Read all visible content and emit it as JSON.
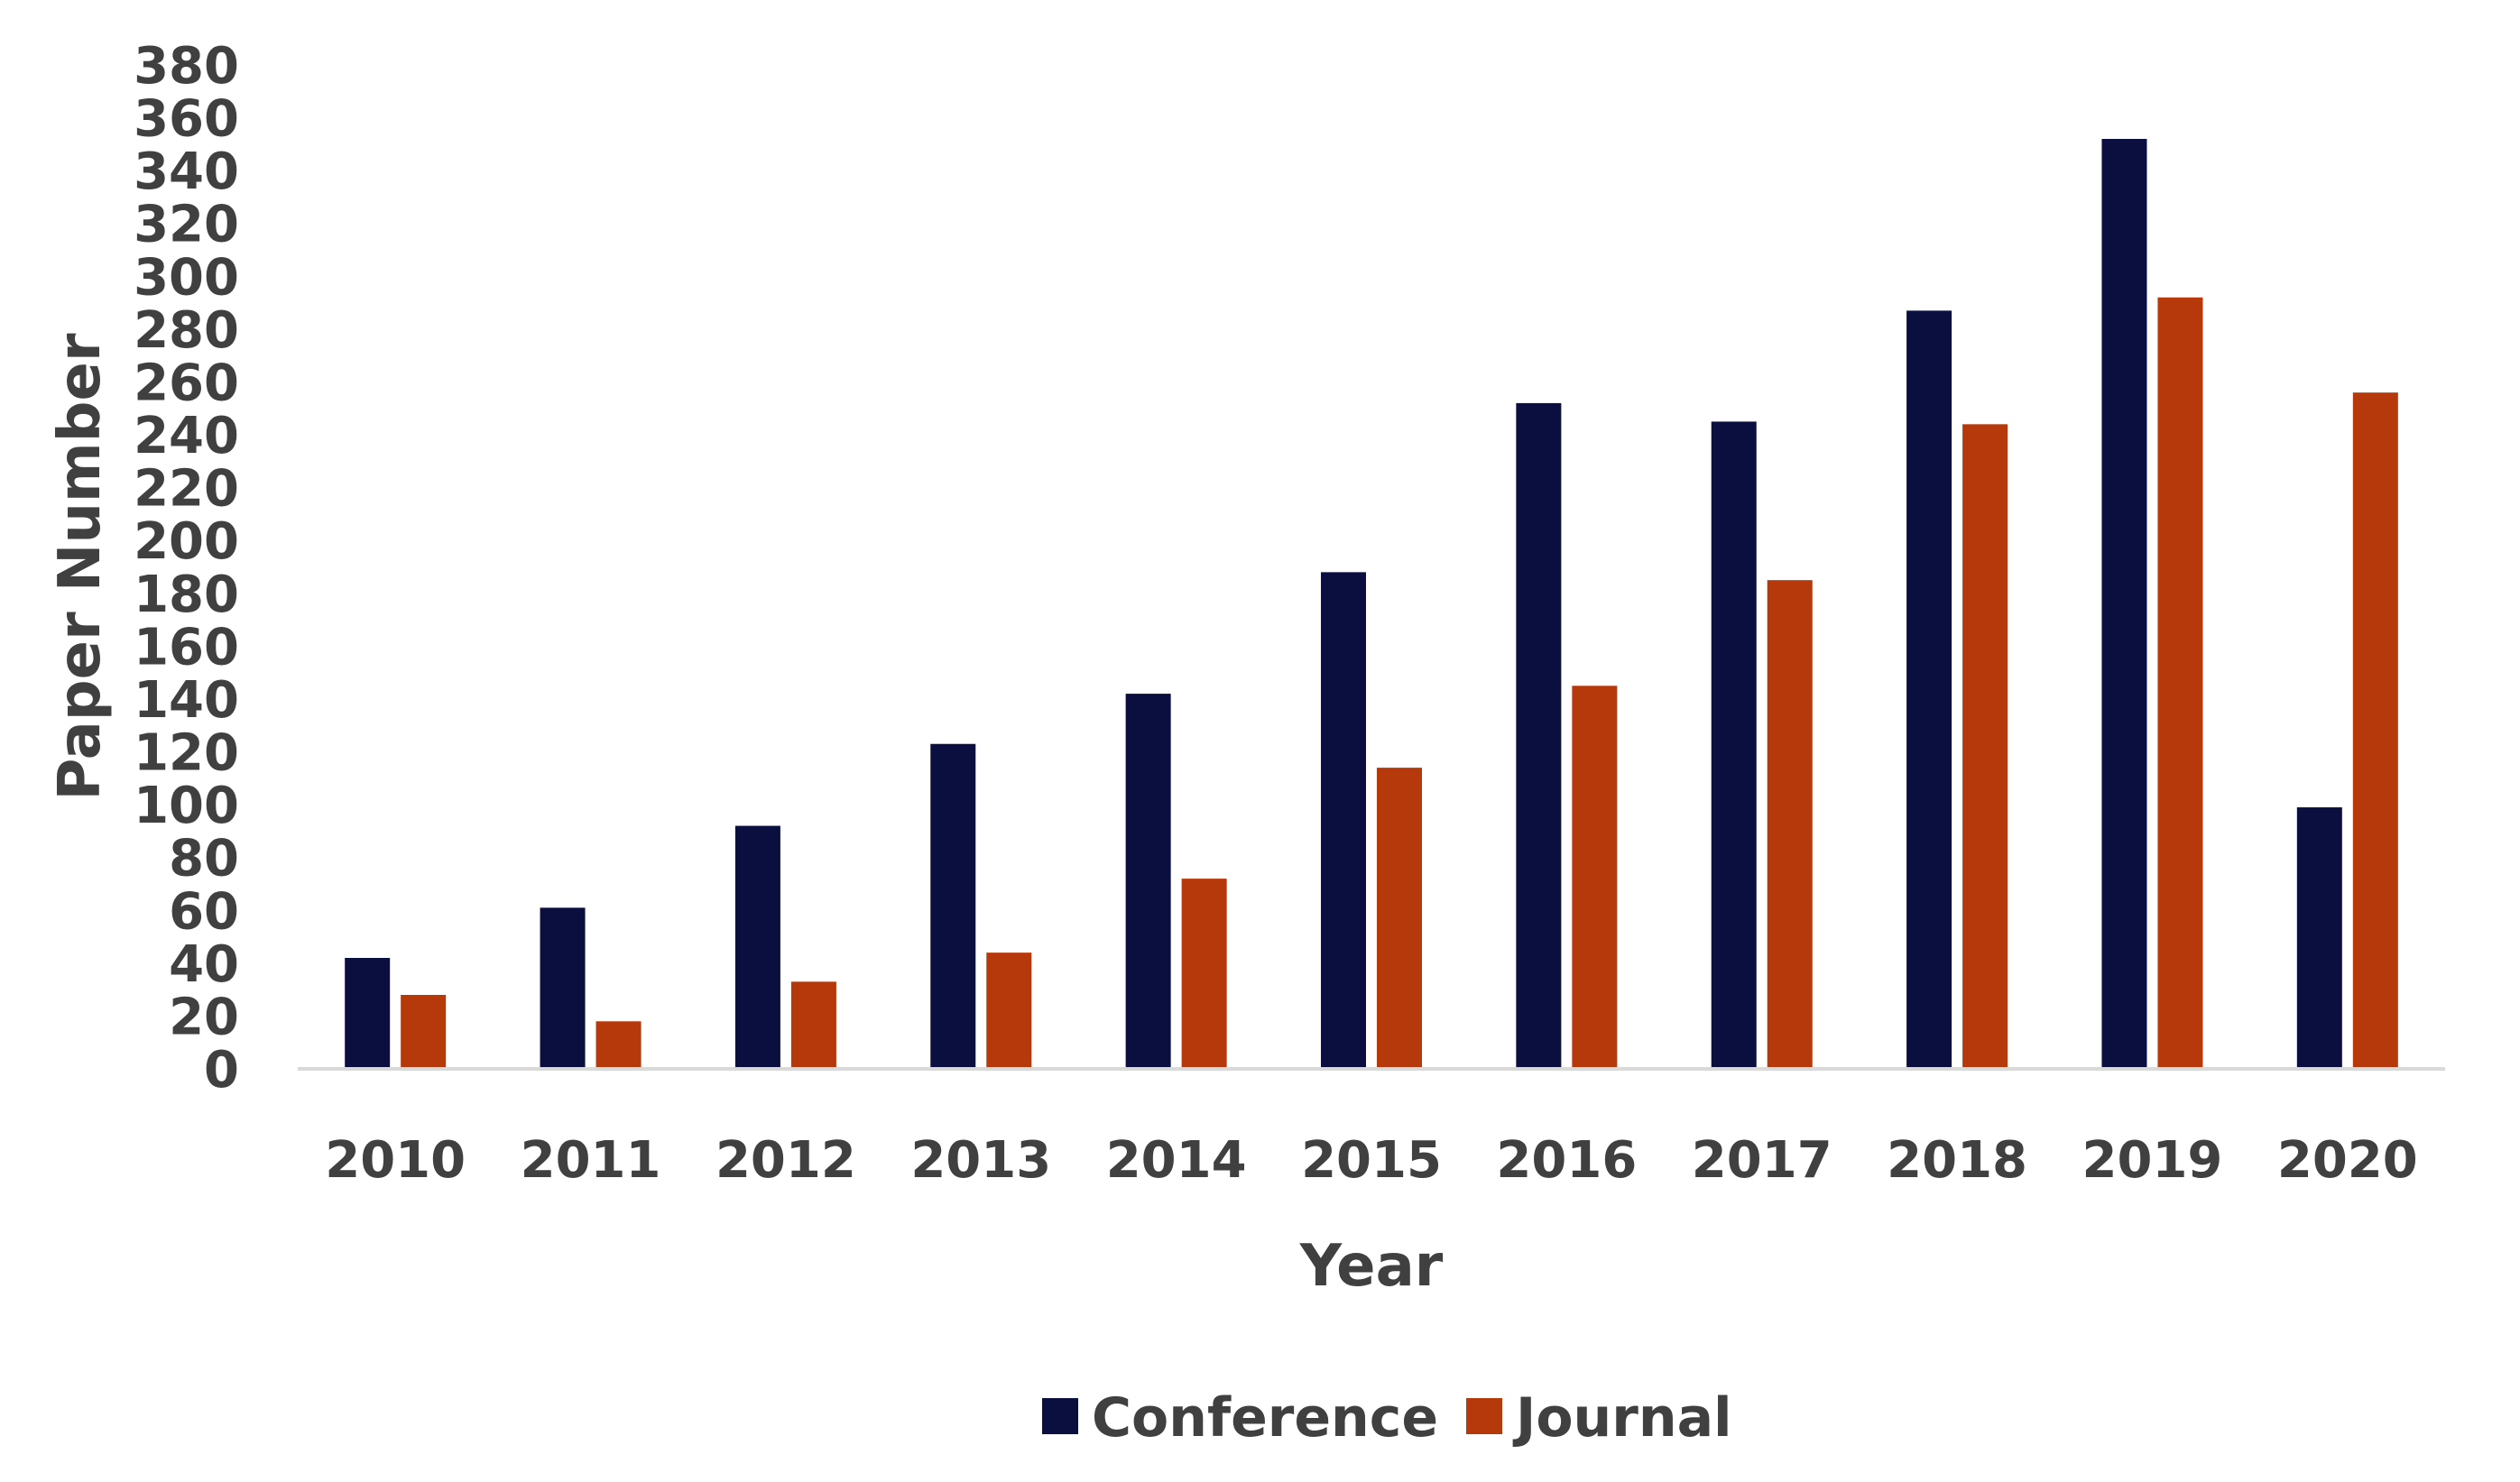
{
  "chart_data": {
    "type": "bar",
    "title": "",
    "xlabel": "Year",
    "ylabel": "Paper Number",
    "categories": [
      "2010",
      "2011",
      "2012",
      "2013",
      "2014",
      "2015",
      "2016",
      "2017",
      "2018",
      "2019",
      "2020"
    ],
    "series": [
      {
        "name": "Conference",
        "color": "#0b0f3f",
        "values": [
          42,
          61,
          92,
          123,
          142,
          188,
          252,
          245,
          287,
          352,
          99
        ]
      },
      {
        "name": "Journal",
        "color": "#b5390b",
        "values": [
          28,
          18,
          33,
          44,
          72,
          114,
          145,
          185,
          244,
          292,
          256
        ]
      }
    ],
    "ylim": [
      0,
      380
    ],
    "yticks": [
      0,
      20,
      40,
      60,
      80,
      100,
      120,
      140,
      160,
      180,
      200,
      220,
      240,
      260,
      280,
      300,
      320,
      340,
      360,
      380
    ],
    "grid": false,
    "legend_position": "bottom-center"
  }
}
